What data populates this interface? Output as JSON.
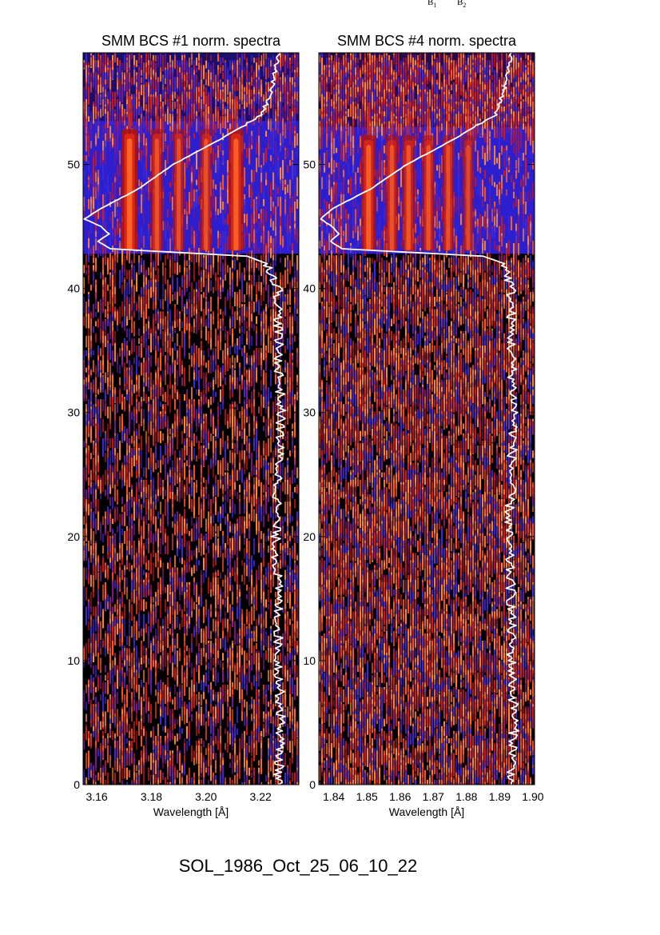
{
  "top_labels": [
    {
      "main": "B",
      "sub": "1"
    },
    {
      "main": "B",
      "sub": "2"
    }
  ],
  "footer": "SOL_1986_Oct_25_06_10_22",
  "chart_data": [
    {
      "type": "heatmap",
      "title": "SMM BCS #1 norm. spectra",
      "xlabel": "Wavelength [Å]",
      "ylabel": "",
      "xlim": [
        3.155,
        3.234
      ],
      "ylim": [
        0,
        59
      ],
      "x_ticks": [
        "3.16",
        "3.18",
        "3.20",
        "3.22"
      ],
      "x_tick_values": [
        3.16,
        3.18,
        3.2,
        3.22
      ],
      "y_ticks": [
        "0",
        "10",
        "20",
        "30",
        "40",
        "50"
      ],
      "y_tick_values": [
        0,
        10,
        20,
        30,
        40,
        50
      ],
      "flare_band": [
        42.8,
        53.5
      ],
      "emission_lines": [
        {
          "wavelength": 3.172,
          "strength": 1.0
        },
        {
          "wavelength": 3.182,
          "strength": 0.55
        },
        {
          "wavelength": 3.19,
          "strength": 0.45
        },
        {
          "wavelength": 3.2,
          "strength": 0.5
        },
        {
          "wavelength": 3.211,
          "strength": 0.85
        }
      ],
      "noise_floor_x": 3.222,
      "lightcurve": {
        "y": [
          59,
          56,
          54,
          52,
          50,
          48,
          46.5,
          45.6,
          45.0,
          44.4,
          43.8,
          43.2,
          42.9,
          42.6,
          42.0,
          40,
          35,
          30,
          25,
          20,
          15,
          10,
          5,
          0
        ],
        "x": [
          3.2265,
          3.224,
          3.2205,
          3.205,
          3.188,
          3.175,
          3.162,
          3.1555,
          3.1615,
          3.1645,
          3.1605,
          3.165,
          3.19,
          3.215,
          3.2225,
          3.2265,
          3.2265,
          3.2275,
          3.2265,
          3.2255,
          3.2265,
          3.2265,
          3.2275,
          3.2265
        ]
      }
    },
    {
      "type": "heatmap",
      "title": "SMM BCS #4 norm. spectra",
      "xlabel": "Wavelength [Å]",
      "ylabel": "",
      "xlim": [
        1.8355,
        1.9005
      ],
      "ylim": [
        0,
        59
      ],
      "x_ticks": [
        "1.84",
        "1.85",
        "1.86",
        "1.87",
        "1.88",
        "1.89",
        "1.90"
      ],
      "x_tick_values": [
        1.84,
        1.85,
        1.86,
        1.87,
        1.88,
        1.89,
        1.9
      ],
      "y_ticks": [
        "0",
        "10",
        "20",
        "30",
        "40",
        "50"
      ],
      "y_tick_values": [
        0,
        10,
        20,
        30,
        40,
        50
      ],
      "flare_band": [
        42.8,
        53.0
      ],
      "emission_lines": [
        {
          "wavelength": 1.8505,
          "strength": 0.8
        },
        {
          "wavelength": 1.8575,
          "strength": 0.55
        },
        {
          "wavelength": 1.8625,
          "strength": 0.6
        },
        {
          "wavelength": 1.8685,
          "strength": 0.55
        },
        {
          "wavelength": 1.8745,
          "strength": 0.45
        },
        {
          "wavelength": 1.8805,
          "strength": 0.35
        }
      ],
      "noise_floor_x": 1.8905,
      "lightcurve": {
        "y": [
          59,
          56,
          54,
          52,
          50,
          48,
          46.5,
          45.6,
          45.0,
          44.4,
          43.8,
          43.2,
          42.9,
          42.6,
          42.0,
          40,
          35,
          30,
          25,
          20,
          15,
          10,
          5,
          0
        ],
        "x": [
          1.8935,
          1.8915,
          1.8885,
          1.876,
          1.862,
          1.851,
          1.84,
          1.836,
          1.8395,
          1.8415,
          1.839,
          1.8425,
          1.864,
          1.885,
          1.8915,
          1.8935,
          1.8935,
          1.8945,
          1.8935,
          1.8925,
          1.8935,
          1.8935,
          1.8945,
          1.8935
        ]
      }
    }
  ]
}
